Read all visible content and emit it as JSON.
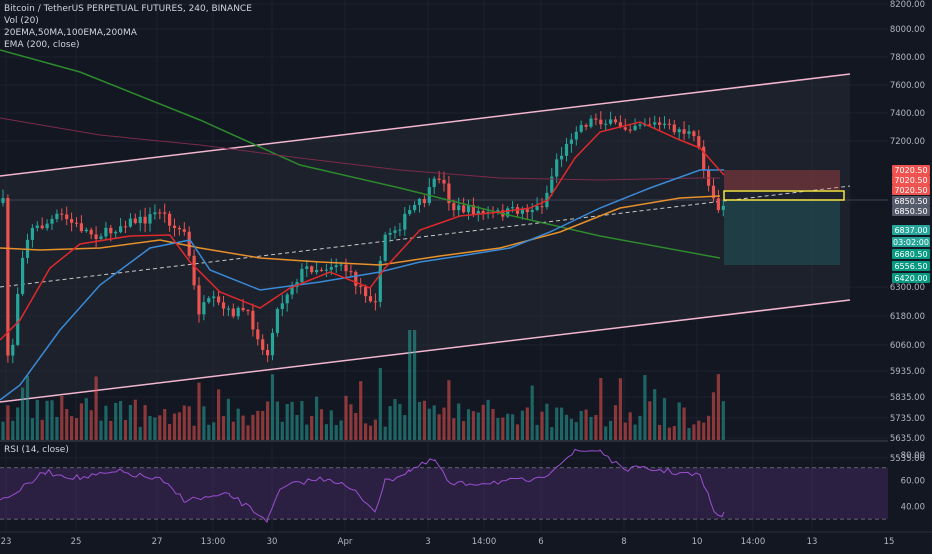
{
  "header": {
    "symbol_line": "Bitcoin / TetherUS PERPETUAL FUTURES, 240, BINANCE",
    "vol_label": "Vol (20)",
    "ma_label": "20EMA,50MA,100EMA,200MA",
    "ema_label": "EMA (200, close)",
    "rsi_label": "RSI (14, close)"
  },
  "colors": {
    "background": "#131722",
    "up": "#26a69a",
    "down": "#ef5350",
    "ema20": "#e0292b",
    "ma50": "#3a8ad6",
    "ema100": "#e8902a",
    "ma200": "#2d8a2d",
    "ema200": "#7c2a4a",
    "channel": "#f3b6cf",
    "rsi": "#9b4fd0",
    "highlight": "#f5e642"
  },
  "chart_data": {
    "type": "candlestick",
    "symbol": "Bitcoin / TetherUS PERPETUAL FUTURES",
    "timeframe": "240",
    "exchange": "BINANCE",
    "price_axis": {
      "ticks": [
        "8200.00",
        "8000.00",
        "7800.00",
        "7600.00",
        "7400.00",
        "7200.00",
        "6300.00",
        "6180.00",
        "6060.00",
        "5935.00",
        "5835.00",
        "5735.00",
        "5635.00",
        "5535.00"
      ],
      "scale": "log"
    },
    "x_axis": {
      "ticks": [
        "23",
        "25",
        "27",
        "13:00",
        "30",
        "Apr",
        "3",
        "14:00",
        "6",
        "8",
        "10",
        "14:00",
        "13",
        "15"
      ]
    },
    "price_labels": [
      {
        "text": "7020.50",
        "color": "#ef5350"
      },
      {
        "text": "7020.50",
        "color": "#ef5350"
      },
      {
        "text": "7020.50",
        "color": "#ef5350"
      },
      {
        "text": "6850.50",
        "color": "#555b6b"
      },
      {
        "text": "6850.50",
        "color": "#555b6b"
      },
      {
        "text": "6837.00",
        "color": "#26a69a"
      },
      {
        "text": "03:02:00",
        "color": "#26a69a"
      },
      {
        "text": "6680.50",
        "color": "#089981"
      },
      {
        "text": "6556.50",
        "color": "#089981"
      },
      {
        "text": "6420.00",
        "color": "#089981"
      }
    ],
    "rsi_axis": {
      "ticks": [
        "80.00",
        "60.00",
        "40.00"
      ],
      "overbought": 70,
      "oversold": 30
    }
  }
}
